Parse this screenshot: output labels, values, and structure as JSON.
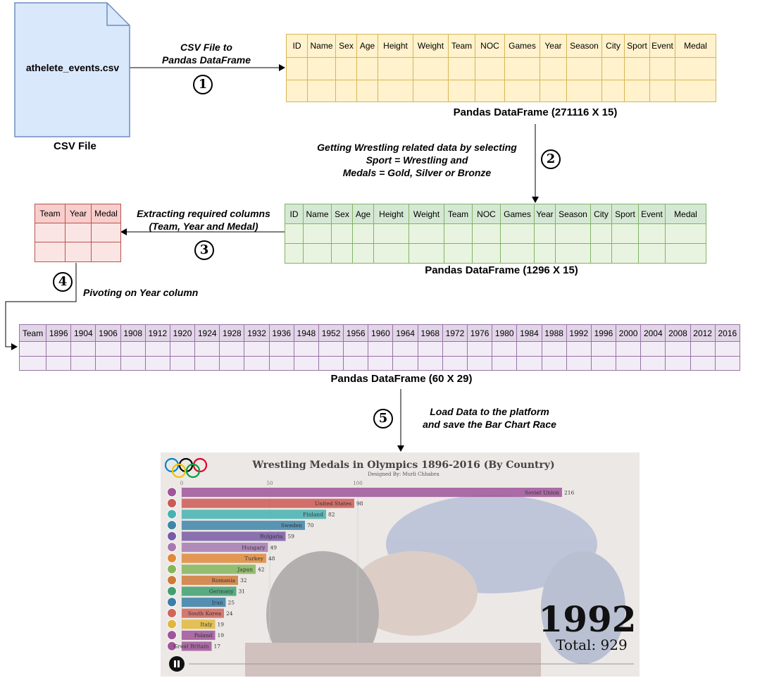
{
  "csv_file": {
    "filename": "athelete_events.csv",
    "caption": "CSV File"
  },
  "steps": {
    "s1": {
      "num": "1",
      "label_line1": "CSV File to",
      "label_line2": "Pandas DataFrame"
    },
    "s2": {
      "num": "2",
      "label_line1": "Getting Wrestling related data by selecting",
      "label_line2": "Sport = Wrestling and",
      "label_line3": "Medals = Gold, Silver or Bronze"
    },
    "s3": {
      "num": "3",
      "label_line1": "Extracting required columns",
      "label_line2": "(Team, Year and Medal)"
    },
    "s4": {
      "num": "4",
      "label_line1": "Pivoting on Year column"
    },
    "s5": {
      "num": "5",
      "label_line1": "Load Data to the platform",
      "label_line2": "and save the Bar Chart Race"
    }
  },
  "df1": {
    "caption": "Pandas DataFrame (271116 X 15)",
    "columns": [
      "ID",
      "Name",
      "Sex",
      "Age",
      "Height",
      "Weight",
      "Team",
      "NOC",
      "Games",
      "Year",
      "Season",
      "City",
      "Sport",
      "Event",
      "Medal"
    ]
  },
  "df2": {
    "caption": "Pandas DataFrame (1296 X 15)",
    "columns": [
      "ID",
      "Name",
      "Sex",
      "Age",
      "Height",
      "Weight",
      "Team",
      "NOC",
      "Games",
      "Year",
      "Season",
      "City",
      "Sport",
      "Event",
      "Medal"
    ]
  },
  "df3": {
    "columns": [
      "Team",
      "Year",
      "Medal"
    ]
  },
  "df4": {
    "caption": "Pandas DataFrame (60 X 29)",
    "columns": [
      "Team",
      "1896",
      "1904",
      "1906",
      "1908",
      "1912",
      "1920",
      "1924",
      "1928",
      "1932",
      "1936",
      "1948",
      "1952",
      "1956",
      "1960",
      "1964",
      "1968",
      "1972",
      "1976",
      "1980",
      "1984",
      "1988",
      "1992",
      "1996",
      "2000",
      "2004",
      "2008",
      "2012",
      "2016"
    ]
  },
  "chart_data": {
    "type": "bar",
    "title": "Wrestling Medals in Olympics 1896-2016 (By Country)",
    "subtitle": "Designed By: Murli Chhabra",
    "year": "1992",
    "total_label": "Total: 929",
    "axis_ticks": [
      "0",
      "50",
      "100"
    ],
    "xlim": [
      0,
      220
    ],
    "categories": [
      "Soviet Union",
      "United States",
      "Finland",
      "Sweden",
      "Bulgaria",
      "Hungary",
      "Turkey",
      "Japan",
      "Romania",
      "Germany",
      "Iran",
      "South Korea",
      "Italy",
      "Poland",
      "Great Britain"
    ],
    "values": [
      216,
      98,
      82,
      70,
      59,
      49,
      48,
      42,
      32,
      31,
      25,
      24,
      19,
      19,
      17
    ],
    "colors": [
      "#a0559a",
      "#cc5a55",
      "#47b3b0",
      "#3f86a8",
      "#7a5ba6",
      "#a67ab0",
      "#e08a3a",
      "#86b55a",
      "#d07a3a",
      "#3fa070",
      "#3a7fa8",
      "#d0655a",
      "#e0b83a",
      "#a0559a",
      "#a0559a"
    ],
    "flags": [
      "red-circle-flag",
      "stars-stripes-flag",
      "nordic-cross-blue-flag",
      "nordic-cross-yellow-flag",
      "tricolor-flag",
      "tricolor-flag",
      "crescent-flag",
      "red-sun-flag",
      "tricolor-flag",
      "tricolor-flag",
      "tricolor-flag",
      "taegeuk-flag",
      "tricolor-flag",
      "bicolor-flag",
      "union-flag"
    ],
    "olympic_rings_colors": [
      "#0085c7",
      "#000000",
      "#df0024",
      "#f4c300",
      "#009f3d"
    ]
  }
}
